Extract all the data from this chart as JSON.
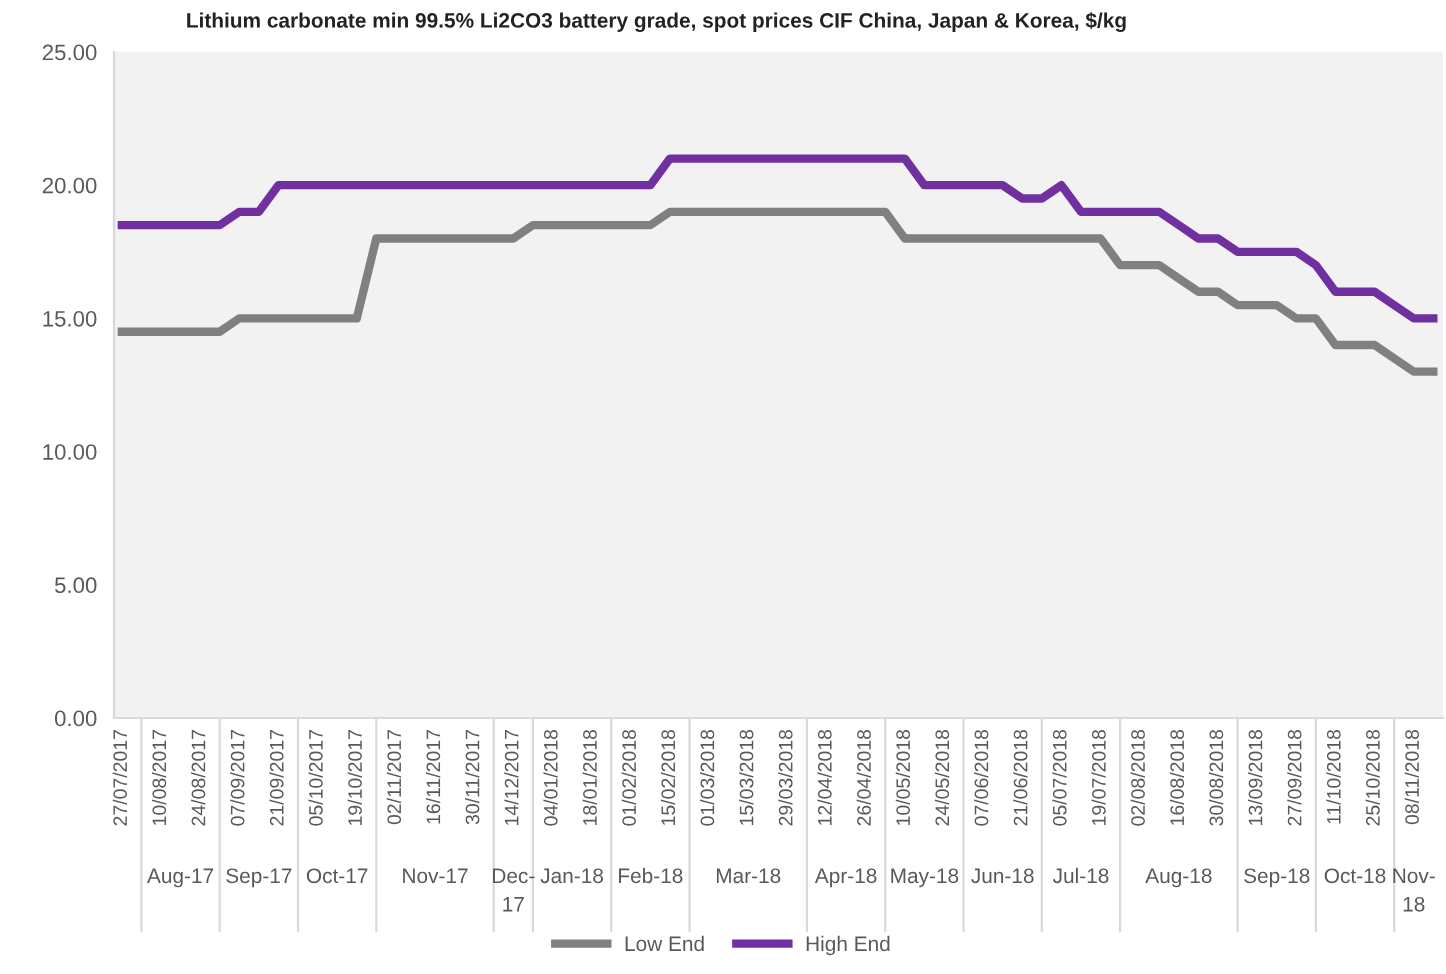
{
  "chart_data": {
    "type": "line",
    "title": "Lithium carbonate min 99.5% Li2CO3 battery grade, spot prices CIF China, Japan & Korea, $/kg",
    "categories": [
      "27/07/2017",
      null,
      "10/08/2017",
      null,
      "24/08/2017",
      null,
      "07/09/2017",
      null,
      "21/09/2017",
      null,
      "05/10/2017",
      null,
      "19/10/2017",
      null,
      "02/11/2017",
      null,
      "16/11/2017",
      null,
      "30/11/2017",
      null,
      "14/12/2017",
      null,
      "04/01/2018",
      null,
      "18/01/2018",
      null,
      "01/02/2018",
      null,
      "15/02/2018",
      null,
      "01/03/2018",
      null,
      "15/03/2018",
      null,
      "29/03/2018",
      null,
      "12/04/2018",
      null,
      "26/04/2018",
      null,
      "10/05/2018",
      null,
      "24/05/2018",
      null,
      "07/06/2018",
      null,
      "21/06/2018",
      null,
      "05/07/2018",
      null,
      "19/07/2018",
      null,
      "02/08/2018",
      null,
      "16/08/2018",
      null,
      "30/08/2018",
      null,
      "13/09/2018",
      null,
      "27/09/2018",
      null,
      "11/10/2018",
      null,
      "25/10/2018",
      null,
      "08/11/2018",
      null
    ],
    "series": [
      {
        "name": "Low End",
        "color": "#808080",
        "values": [
          14.5,
          14.5,
          14.5,
          14.5,
          14.5,
          14.5,
          15,
          15,
          15,
          15,
          15,
          15,
          15,
          18,
          18,
          18,
          18,
          18,
          18,
          18,
          18,
          18.5,
          18.5,
          18.5,
          18.5,
          18.5,
          18.5,
          18.5,
          19,
          19,
          19,
          19,
          19,
          19,
          19,
          19,
          19,
          19,
          19,
          19,
          18,
          18,
          18,
          18,
          18,
          18,
          18,
          18,
          18,
          18,
          18,
          17,
          17,
          17,
          16.5,
          16,
          16,
          15.5,
          15.5,
          15.5,
          15,
          15,
          14,
          14,
          14,
          13.5,
          13,
          13
        ]
      },
      {
        "name": "High End",
        "color": "#7030a0",
        "values": [
          18.5,
          18.5,
          18.5,
          18.5,
          18.5,
          18.5,
          19,
          19,
          20,
          20,
          20,
          20,
          20,
          20,
          20,
          20,
          20,
          20,
          20,
          20,
          20,
          20,
          20,
          20,
          20,
          20,
          20,
          20,
          21,
          21,
          21,
          21,
          21,
          21,
          21,
          21,
          21,
          21,
          21,
          21,
          21,
          20,
          20,
          20,
          20,
          20,
          19.5,
          19.5,
          20,
          19,
          19,
          19,
          19,
          19,
          18.5,
          18,
          18,
          17.5,
          17.5,
          17.5,
          17.5,
          17,
          16,
          16,
          16,
          15.5,
          15,
          15
        ]
      }
    ],
    "ylim": [
      0,
      25
    ],
    "yticks": [
      {
        "value": 0,
        "label": "0.00"
      },
      {
        "value": 5,
        "label": "5.00"
      },
      {
        "value": 10,
        "label": "10.00"
      },
      {
        "value": 15,
        "label": "15.00"
      },
      {
        "value": 20,
        "label": "20.00"
      },
      {
        "value": 25,
        "label": "25.00"
      }
    ],
    "annotations": [
      "Aug-17",
      "Sep-17",
      "Oct-17",
      "Nov-17",
      "Dec-17",
      "Jan-18",
      "Feb-18",
      "Mar-18",
      "Apr-18",
      "May-18",
      "Jun-18",
      "Jul-18",
      "Aug-18",
      "Sep-18",
      "Oct-18",
      "Nov-18"
    ],
    "grid": false,
    "legend": "bottom",
    "marker": "none",
    "line_style": "solid"
  }
}
